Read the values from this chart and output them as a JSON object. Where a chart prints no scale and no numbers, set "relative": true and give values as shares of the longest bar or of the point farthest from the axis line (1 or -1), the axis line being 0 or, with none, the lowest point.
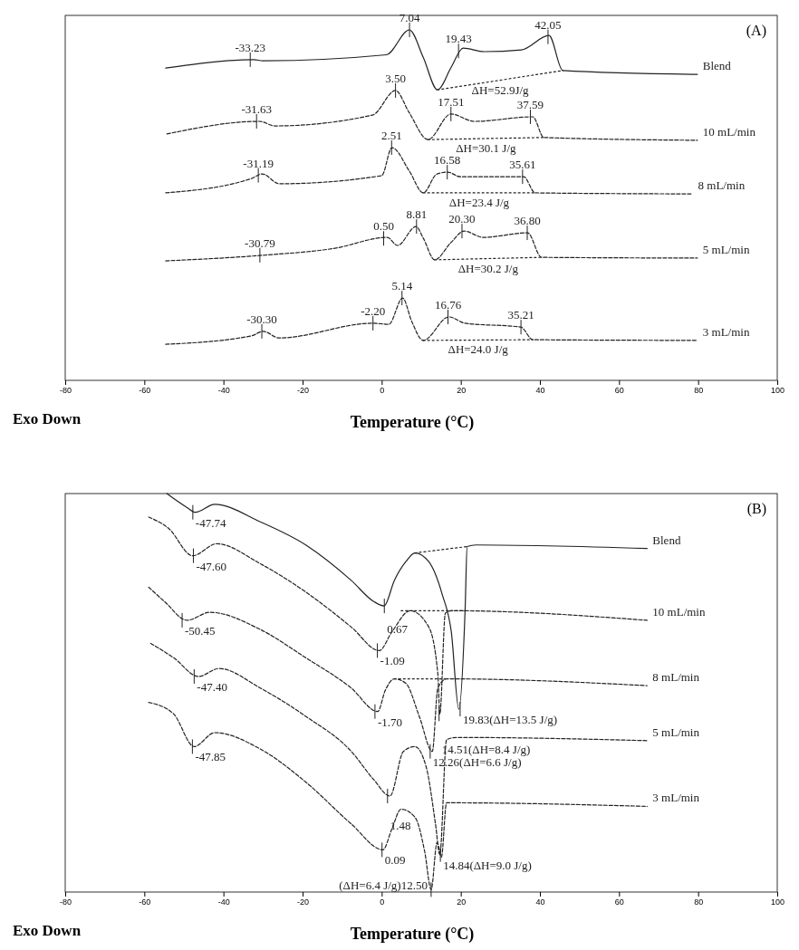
{
  "chart_data": [
    {
      "type": "line",
      "title": "(A)",
      "xlabel": "Temperature (°C)",
      "relative": true,
      "legend": false,
      "xlim": [
        -80,
        100
      ],
      "xticks": [
        -80,
        -60,
        -40,
        -20,
        0,
        20,
        40,
        60,
        80,
        100
      ],
      "annotations": [
        "Exo Down",
        {
          "text": "-33.23",
          "x": -33.23,
          "y": 0.915
        },
        {
          "text": "7.04",
          "x": 7.04,
          "y": 1.0
        },
        {
          "text": "19.43",
          "x": 19.43,
          "y": 0.94
        },
        {
          "text": "42.05",
          "x": 42.05,
          "y": 0.98
        },
        {
          "text": "-31.63",
          "x": -31.63,
          "y": 0.739
        },
        {
          "text": "3.50",
          "x": 3.5,
          "y": 0.827
        },
        {
          "text": "17.51",
          "x": 17.51,
          "y": 0.76
        },
        {
          "text": "37.59",
          "x": 37.59,
          "y": 0.752
        },
        {
          "text": "-31.19",
          "x": -31.19,
          "y": 0.585
        },
        {
          "text": "2.51",
          "x": 2.51,
          "y": 0.664
        },
        {
          "text": "16.58",
          "x": 16.58,
          "y": 0.594
        },
        {
          "text": "35.61",
          "x": 35.61,
          "y": 0.581
        },
        {
          "text": "-30.79",
          "x": -30.79,
          "y": 0.357
        },
        {
          "text": "0.50",
          "x": 0.5,
          "y": 0.405
        },
        {
          "text": "8.81",
          "x": 8.81,
          "y": 0.439
        },
        {
          "text": "20.30",
          "x": 20.3,
          "y": 0.426
        },
        {
          "text": "36.80",
          "x": 36.8,
          "y": 0.421
        },
        {
          "text": "-30.30",
          "x": -30.3,
          "y": 0.14
        },
        {
          "text": "-2.20",
          "x": -2.2,
          "y": 0.163
        },
        {
          "text": "5.14",
          "x": 5.14,
          "y": 0.235
        },
        {
          "text": "16.76",
          "x": 16.76,
          "y": 0.181
        },
        {
          "text": "35.21",
          "x": 35.21,
          "y": 0.152
        }
      ],
      "series": [
        {
          "name": "Blend",
          "color": "#222222",
          "line_style": "solid",
          "x": [
            -54.6,
            -32.3,
            -30,
            1.2,
            7.0,
            10.5,
            14.1,
            17.6,
            20.6,
            25.9,
            35.3,
            42.3,
            45.8,
            79.8
          ],
          "values": [
            0.891,
            0.915,
            0.912,
            0.929,
            1.0,
            0.922,
            0.829,
            0.894,
            0.948,
            0.938,
            0.943,
            0.984,
            0.884,
            0.873
          ]
        },
        {
          "name": "10 mL/min",
          "color": "#222222",
          "line_style": "dashed",
          "x": [
            -54.3,
            -30.9,
            -27,
            -2.3,
            3.5,
            6.9,
            11.7,
            17.5,
            23.4,
            38.2,
            41,
            79.8
          ],
          "values": [
            0.703,
            0.739,
            0.726,
            0.757,
            0.827,
            0.765,
            0.687,
            0.76,
            0.739,
            0.752,
            0.693,
            0.685
          ]
        },
        {
          "name": "8 mL/min",
          "color": "#222222",
          "line_style": "dashed",
          "x": [
            -54.6,
            -32.9,
            -30.2,
            -25.9,
            0,
            2.6,
            7.0,
            10.5,
            14.0,
            16.7,
            19.9,
            35.9,
            38.8,
            78.6
          ],
          "values": [
            0.535,
            0.576,
            0.589,
            0.561,
            0.584,
            0.664,
            0.597,
            0.535,
            0.589,
            0.594,
            0.581,
            0.581,
            0.535,
            0.532
          ]
        },
        {
          "name": "5 mL/min",
          "color": "#222222",
          "line_style": "dashed",
          "x": [
            -54.6,
            -30,
            -11.8,
            1.4,
            4.0,
            8.7,
            10.5,
            13.4,
            17.5,
            20.8,
            25.7,
            36.9,
            40.4,
            79.8
          ],
          "values": [
            0.341,
            0.357,
            0.377,
            0.408,
            0.385,
            0.439,
            0.406,
            0.344,
            0.393,
            0.426,
            0.408,
            0.421,
            0.351,
            0.349
          ]
        },
        {
          "name": "3 mL/min",
          "color": "#222222",
          "line_style": "dashed",
          "x": [
            -54.6,
            -32.9,
            -30,
            -25.9,
            -2.3,
            1.8,
            5.3,
            7.6,
            10.5,
            17.0,
            21.1,
            35.2,
            38.2,
            79.8
          ],
          "values": [
            0.103,
            0.127,
            0.14,
            0.121,
            0.163,
            0.16,
            0.235,
            0.168,
            0.114,
            0.181,
            0.163,
            0.152,
            0.116,
            0.114
          ]
        },
        {
          "name": "ΔH=52.9J/g",
          "color": "#222222",
          "line_style": "dotted",
          "x": [
            14.1,
            45.8
          ],
          "values": [
            0.829,
            0.884
          ]
        },
        {
          "name": "ΔH=30.1 J/g",
          "color": "#222222",
          "line_style": "dotted",
          "x": [
            11.7,
            41
          ],
          "values": [
            0.687,
            0.693
          ]
        },
        {
          "name": "ΔH=23.4 J/g",
          "color": "#222222",
          "line_style": "dotted",
          "x": [
            10.5,
            38.8
          ],
          "values": [
            0.535,
            0.535
          ]
        },
        {
          "name": "ΔH=30.2 J/g",
          "color": "#222222",
          "line_style": "dotted",
          "x": [
            13.4,
            40.4
          ],
          "values": [
            0.344,
            0.351
          ]
        },
        {
          "name": "ΔH=24.0 J/g",
          "color": "#222222",
          "line_style": "dotted",
          "x": [
            10.5,
            38.2
          ],
          "values": [
            0.114,
            0.116
          ]
        }
      ]
    },
    {
      "type": "line",
      "title": "(B)",
      "xlabel": "Temperature (°C)",
      "relative": true,
      "legend": false,
      "xlim": [
        -80,
        100
      ],
      "xticks": [
        -80,
        -60,
        -40,
        -20,
        0,
        20,
        40,
        60,
        80,
        100
      ],
      "annotations": [
        "Exo Down",
        {
          "text": "-47.74",
          "x": -47.74,
          "y": 0.953
        },
        {
          "text": "0.67",
          "x": 0.67,
          "y": 0.718
        },
        {
          "text": "-47.60",
          "x": -47.6,
          "y": 0.844
        },
        {
          "text": "-1.09",
          "x": -1.09,
          "y": 0.606
        },
        {
          "text": "-50.45",
          "x": -50.45,
          "y": 0.682
        },
        {
          "text": "-1.70",
          "x": -1.7,
          "y": 0.453
        },
        {
          "text": "-47.40",
          "x": -47.4,
          "y": 0.541
        },
        {
          "text": "1.48",
          "x": 1.48,
          "y": 0.241
        },
        {
          "text": "-47.85",
          "x": -47.85,
          "y": 0.365
        },
        {
          "text": "0.09",
          "x": 0.09,
          "y": 0.106
        },
        {
          "text": "19.83(ΔH=13.5 J/g)",
          "x": 19.83,
          "y": 0.459
        },
        {
          "text": "14.51(ΔH=8.4 J/g)",
          "x": 14.51,
          "y": 0.447
        },
        {
          "text": "12.26(ΔH=6.6 J/g)",
          "x": 12.26,
          "y": 0.353
        },
        {
          "text": "14.84(ΔH=9.0 J/g)",
          "x": 14.84,
          "y": 0.094
        },
        {
          "text": "(ΔH=6.4 J/g)12.50",
          "x": 12.5,
          "y": 0.006
        }
      ],
      "series": [
        {
          "name": "Blend",
          "color": "#222222",
          "line_style": "solid",
          "x": [
            -54.3,
            -49.2,
            -47.1,
            -42.2,
            -30.7,
            -19.2,
            -7.7,
            -2.0,
            0.6,
            3.2,
            6.1,
            8.4,
            11.9,
            15.3,
            17.6,
            19.5,
            21.1,
            21.6,
            23.9,
            67.1
          ],
          "values": [
            1.0,
            0.965,
            0.953,
            0.973,
            0.929,
            0.871,
            0.782,
            0.729,
            0.718,
            0.782,
            0.829,
            0.851,
            0.829,
            0.747,
            0.653,
            0.459,
            0.712,
            0.867,
            0.871,
            0.862
          ]
        },
        {
          "name": "10 mL/min",
          "color": "#222222",
          "line_style": "dashed",
          "x": [
            -58.9,
            -53.8,
            -47.8,
            -41.7,
            -30.7,
            -19.2,
            -7.7,
            -0.6,
            2.6,
            7.2,
            11.9,
            14.2,
            14.7,
            16.1,
            17.6,
            67.1
          ],
          "values": [
            0.941,
            0.912,
            0.844,
            0.874,
            0.824,
            0.753,
            0.665,
            0.606,
            0.653,
            0.706,
            0.665,
            0.547,
            0.447,
            0.7,
            0.706,
            0.682
          ]
        },
        {
          "name": "8 mL/min",
          "color": "#222222",
          "line_style": "dashed",
          "x": [
            -58.9,
            -54.9,
            -49.2,
            -43.4,
            -30.7,
            -19.2,
            -7.7,
            -1.0,
            0.9,
            3.2,
            6.1,
            9.5,
            12.8,
            14.2,
            16.4,
            67.1
          ],
          "values": [
            0.765,
            0.729,
            0.682,
            0.702,
            0.659,
            0.588,
            0.512,
            0.453,
            0.506,
            0.535,
            0.524,
            0.441,
            0.353,
            0.512,
            0.535,
            0.518
          ]
        },
        {
          "name": "5 mL/min",
          "color": "#222222",
          "line_style": "dashed",
          "x": [
            -58.4,
            -52.6,
            -46.3,
            -41.1,
            -30.7,
            -19.2,
            -7.7,
            -2.0,
            2.1,
            5.5,
            8.4,
            11.3,
            13.6,
            14.7,
            16.4,
            18.8,
            67.1
          ],
          "values": [
            0.624,
            0.588,
            0.541,
            0.561,
            0.512,
            0.441,
            0.353,
            0.282,
            0.241,
            0.353,
            0.365,
            0.312,
            0.171,
            0.094,
            0.382,
            0.388,
            0.38
          ]
        },
        {
          "name": "3 mL/min",
          "color": "#222222",
          "line_style": "dashed",
          "x": [
            -58.9,
            -52.6,
            -47.4,
            -42.2,
            -30.7,
            -19.2,
            -7.7,
            0.3,
            2.6,
            4.9,
            8.4,
            10.9,
            12.5,
            14.0,
            15.1,
            16.4,
            67.1
          ],
          "values": [
            0.476,
            0.447,
            0.365,
            0.4,
            0.359,
            0.276,
            0.171,
            0.106,
            0.159,
            0.208,
            0.188,
            0.1,
            0.006,
            0.124,
            0.088,
            0.224,
            0.215
          ]
        },
        {
          "color": "#222222",
          "line_style": "dotted",
          "x": [
            8.4,
            21.6
          ],
          "values": [
            0.851,
            0.867
          ]
        },
        {
          "color": "#222222",
          "line_style": "dotted",
          "x": [
            4.9,
            21.1
          ],
          "values": [
            0.706,
            0.706
          ]
        },
        {
          "color": "#222222",
          "line_style": "dotted",
          "x": [
            3.2,
            16.4
          ],
          "values": [
            0.535,
            0.535
          ]
        }
      ]
    }
  ]
}
